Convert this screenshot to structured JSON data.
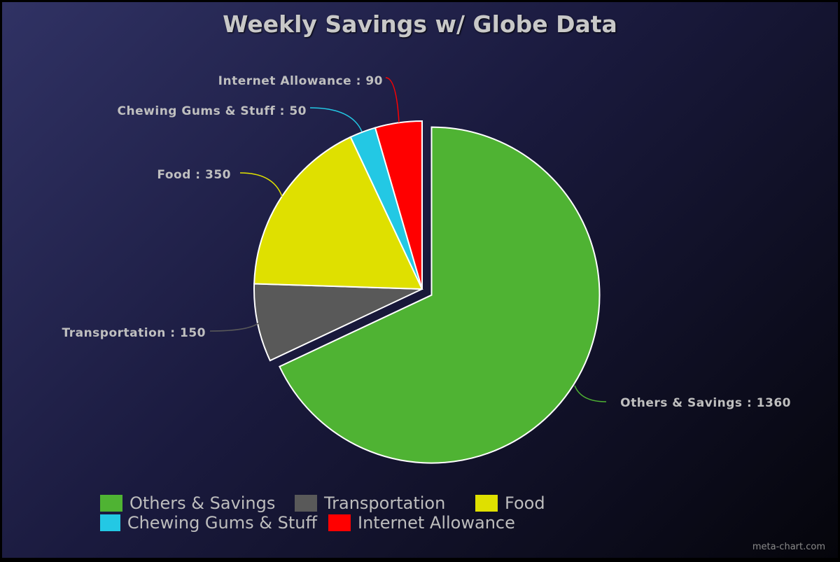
{
  "credit": "meta-chart.com",
  "chart_data": {
    "type": "pie",
    "title": "Weekly Savings w/ Globe Data",
    "slices": [
      {
        "label": "Others & Savings",
        "value": 1360,
        "color": "#4fb333",
        "exploded": true
      },
      {
        "label": "Transportation",
        "value": 150,
        "color": "#595959",
        "exploded": false
      },
      {
        "label": "Food",
        "value": 350,
        "color": "#dfe000",
        "exploded": false
      },
      {
        "label": "Chewing Gums & Stuff",
        "value": 50,
        "color": "#23c8e4",
        "exploded": false
      },
      {
        "label": "Internet Allowance",
        "value": 90,
        "color": "#ff0000",
        "exploded": false
      }
    ],
    "data_label_separator": " : ",
    "legend_position": "bottom"
  }
}
